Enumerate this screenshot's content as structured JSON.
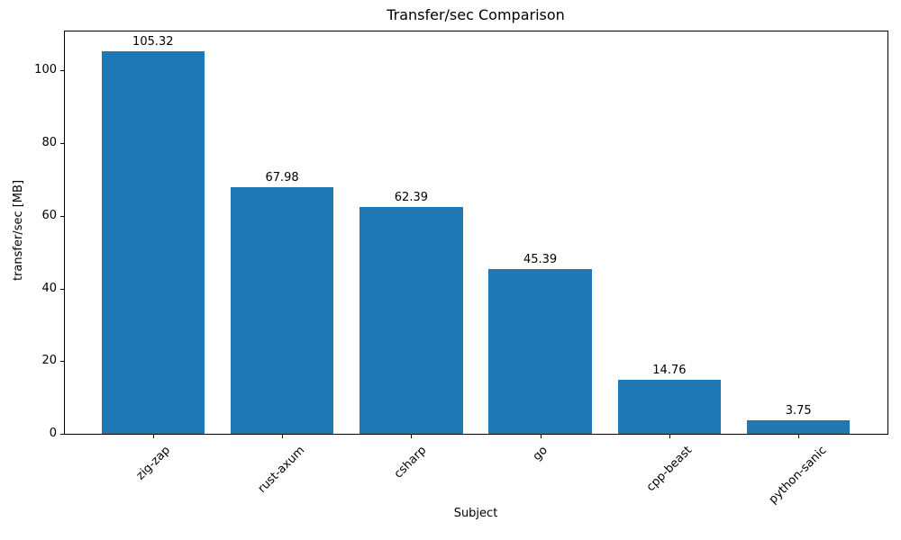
{
  "chart_data": {
    "type": "bar",
    "title": "Transfer/sec Comparison",
    "xlabel": "Subject",
    "ylabel": "transfer/sec [MB]",
    "categories": [
      "zig-zap",
      "rust-axum",
      "csharp",
      "go",
      "cpp-beast",
      "python-sanic"
    ],
    "values": [
      105.32,
      67.98,
      62.39,
      45.39,
      14.76,
      3.75
    ],
    "bar_labels": [
      "105.32",
      "67.98",
      "62.39",
      "45.39",
      "14.76",
      "3.75"
    ],
    "yticks": [
      0,
      20,
      40,
      60,
      80,
      100
    ],
    "ylim": [
      0,
      111
    ],
    "bar_color": "#1f77b4",
    "grid": false,
    "legend_position": "none"
  }
}
